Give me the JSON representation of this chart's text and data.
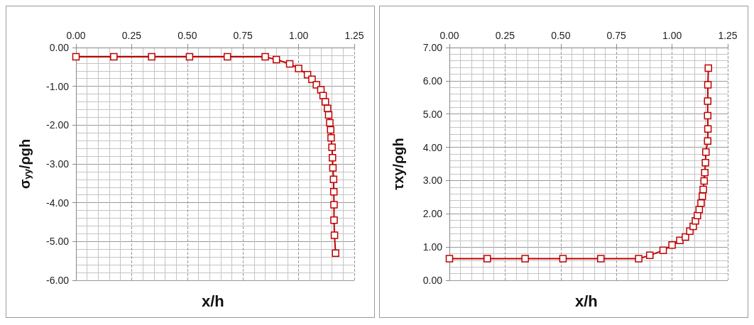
{
  "chart_data": [
    {
      "type": "line",
      "xlabel": "x/h",
      "ylabel": "σ$_{yy}$/ρgh",
      "marker": "square",
      "line_style": "solid",
      "grid": true,
      "xlim": [
        0,
        1.25
      ],
      "xticks": [
        {
          "value": 0,
          "label": "0.00"
        },
        {
          "value": 0.25,
          "label": "0.25"
        },
        {
          "value": 0.5,
          "label": "0.50"
        },
        {
          "value": 0.75,
          "label": "0.75"
        },
        {
          "value": 1,
          "label": "1.00"
        },
        {
          "value": 1.25,
          "label": "1.25"
        }
      ],
      "ylim": [
        -6,
        0
      ],
      "yticks": [
        {
          "value": -6,
          "label": "-6.00"
        },
        {
          "value": -5,
          "label": "-5.00"
        },
        {
          "value": -4,
          "label": "-4.00"
        },
        {
          "value": -3,
          "label": "-3.00"
        },
        {
          "value": -2,
          "label": "-2.00"
        },
        {
          "value": -1,
          "label": "-1.00"
        },
        {
          "value": 0,
          "label": "0.00"
        }
      ],
      "series": [
        {
          "color": "#c00000",
          "x": [
            0,
            0.17,
            0.34,
            0.51,
            0.68,
            0.85,
            0.9,
            0.96,
            1.0,
            1.04,
            1.06,
            1.08,
            1.1,
            1.11,
            1.12,
            1.13,
            1.135,
            1.14,
            1.144,
            1.146,
            1.15,
            1.152,
            1.154,
            1.157,
            1.158,
            1.159,
            1.159,
            1.161,
            1.166
          ],
          "values": [
            -0.24,
            -0.24,
            -0.24,
            -0.24,
            -0.24,
            -0.24,
            -0.31,
            -0.42,
            -0.54,
            -0.7,
            -0.82,
            -0.96,
            -1.09,
            -1.24,
            -1.4,
            -1.57,
            -1.74,
            -1.94,
            -2.12,
            -2.33,
            -2.57,
            -2.84,
            -3.1,
            -3.4,
            -3.72,
            -4.05,
            -4.45,
            -4.84,
            -5.3
          ]
        }
      ]
    },
    {
      "type": "line",
      "xlabel": "x/h",
      "ylabel": "τxy/ρgh",
      "marker": "square",
      "line_style": "solid",
      "grid": true,
      "xlim": [
        0,
        1.25
      ],
      "xticks": [
        {
          "value": 0,
          "label": "0.00"
        },
        {
          "value": 0.25,
          "label": "0.25"
        },
        {
          "value": 0.5,
          "label": "0.50"
        },
        {
          "value": 0.75,
          "label": "0.75"
        },
        {
          "value": 1,
          "label": "1.00"
        },
        {
          "value": 1.25,
          "label": "1.25"
        }
      ],
      "ylim": [
        0,
        7
      ],
      "yticks": [
        {
          "value": 0,
          "label": "0.00"
        },
        {
          "value": 1,
          "label": "1.00"
        },
        {
          "value": 2,
          "label": "2.00"
        },
        {
          "value": 3,
          "label": "3.00"
        },
        {
          "value": 4,
          "label": "4.00"
        },
        {
          "value": 5,
          "label": "5.00"
        },
        {
          "value": 6,
          "label": "6.00"
        },
        {
          "value": 7,
          "label": "7.00"
        }
      ],
      "series": [
        {
          "color": "#c00000",
          "x": [
            0,
            0.17,
            0.34,
            0.51,
            0.68,
            0.85,
            0.9,
            0.96,
            1.0,
            1.035,
            1.06,
            1.08,
            1.095,
            1.105,
            1.114,
            1.122,
            1.13,
            1.136,
            1.14,
            1.144,
            1.147,
            1.15,
            1.152,
            1.16,
            1.161,
            1.16,
            1.16,
            1.161,
            1.163
          ],
          "values": [
            0.65,
            0.65,
            0.65,
            0.65,
            0.65,
            0.65,
            0.75,
            0.9,
            1.06,
            1.2,
            1.3,
            1.48,
            1.62,
            1.79,
            1.95,
            2.13,
            2.32,
            2.53,
            2.73,
            2.99,
            3.24,
            3.54,
            3.86,
            4.19,
            4.55,
            4.95,
            5.39,
            5.88,
            6.38
          ]
        }
      ]
    }
  ]
}
